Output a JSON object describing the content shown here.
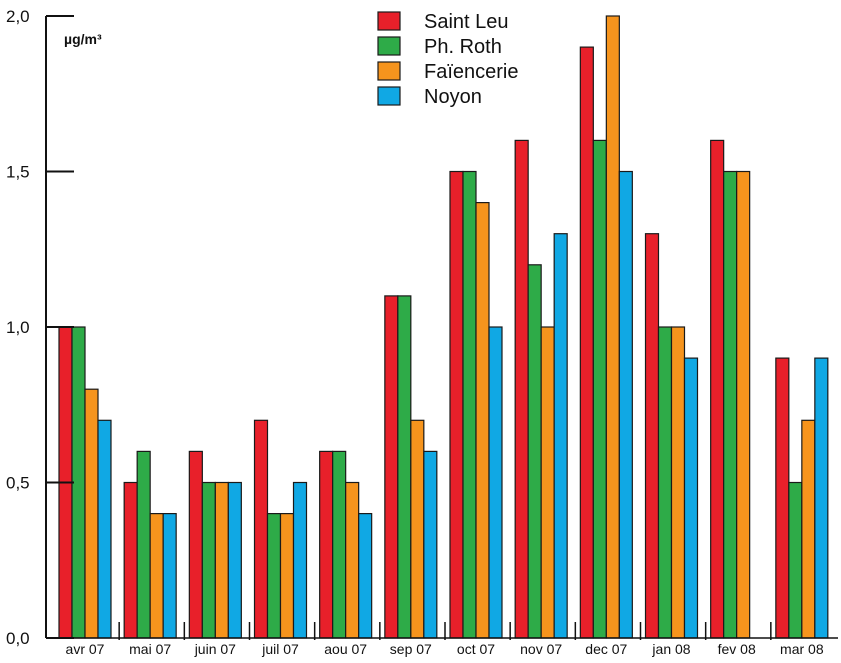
{
  "chart_data": {
    "type": "bar",
    "ylabel": "µg/m³",
    "ylim": [
      0,
      2.0
    ],
    "yticks": [
      "0,0",
      "0,5",
      "1,0",
      "1,5",
      "2,0"
    ],
    "ytick_values": [
      0,
      0.5,
      1.0,
      1.5,
      2.0
    ],
    "categories": [
      "avr 07",
      "mai 07",
      "juin 07",
      "juil 07",
      "aou 07",
      "sep 07",
      "oct 07",
      "nov 07",
      "dec 07",
      "jan 08",
      "fev 08",
      "mar 08"
    ],
    "series": [
      {
        "name": "Saint Leu",
        "color": "#e8202a",
        "values": [
          1.0,
          0.5,
          0.6,
          0.7,
          0.6,
          1.1,
          1.5,
          1.6,
          1.9,
          1.3,
          1.6,
          0.9
        ]
      },
      {
        "name": "Ph. Roth",
        "color": "#2eab48",
        "values": [
          1.0,
          0.6,
          0.5,
          0.4,
          0.6,
          1.1,
          1.5,
          1.2,
          1.6,
          1.0,
          1.5,
          0.5
        ]
      },
      {
        "name": "Faïencerie",
        "color": "#f6941d",
        "values": [
          0.8,
          0.4,
          0.5,
          0.4,
          0.5,
          0.7,
          1.4,
          1.0,
          2.0,
          1.0,
          1.5,
          0.7
        ]
      },
      {
        "name": "Noyon",
        "color": "#10a8e4",
        "values": [
          0.7,
          0.4,
          0.5,
          0.5,
          0.4,
          0.6,
          1.0,
          1.3,
          1.5,
          0.9,
          null,
          0.9
        ]
      }
    ],
    "grid": false,
    "legend_position": "top-center"
  }
}
